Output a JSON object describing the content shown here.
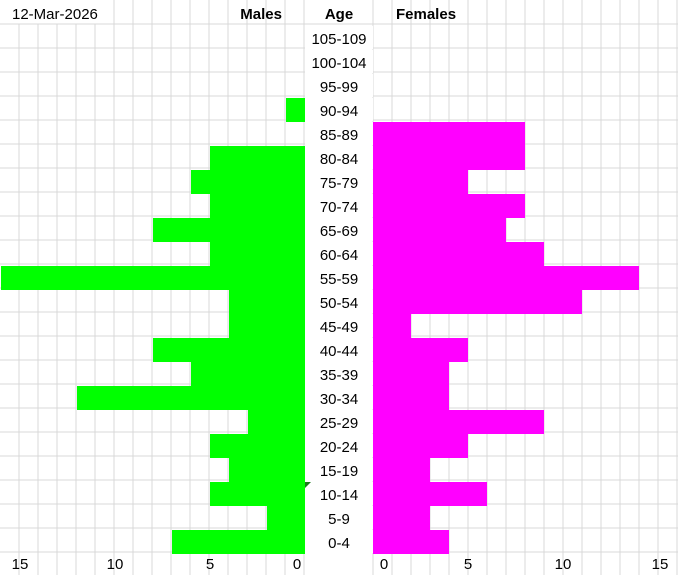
{
  "date": "12-Mar-2026",
  "chart_data": {
    "type": "bar",
    "orientation": "horizontal-pyramid",
    "title": "",
    "headers": {
      "males": "Males",
      "age": "Age",
      "females": "Females"
    },
    "categories": [
      "105-109",
      "100-104",
      "95-99",
      "90-94",
      "85-89",
      "80-84",
      "75-79",
      "70-74",
      "65-69",
      "60-64",
      "55-59",
      "50-54",
      "45-49",
      "40-44",
      "35-39",
      "30-34",
      "25-29",
      "20-24",
      "15-19",
      "10-14",
      "5-9",
      "0-4"
    ],
    "series": [
      {
        "name": "Males",
        "color": "#00ff00",
        "values": [
          0,
          0,
          0,
          1,
          0,
          5,
          6,
          5,
          8,
          5,
          16,
          4,
          4,
          8,
          6,
          12,
          3,
          5,
          4,
          5,
          2,
          7
        ]
      },
      {
        "name": "Females",
        "color": "#ff00ff",
        "values": [
          0,
          0,
          0,
          0,
          8,
          8,
          5,
          8,
          7,
          9,
          14,
          11,
          2,
          5,
          4,
          4,
          9,
          5,
          3,
          6,
          3,
          4
        ]
      }
    ],
    "male_ticks": [
      "15",
      "10",
      "5",
      "0"
    ],
    "female_ticks": [
      "0",
      "5",
      "10",
      "15"
    ],
    "xlim": [
      0,
      15
    ],
    "grid": true
  }
}
